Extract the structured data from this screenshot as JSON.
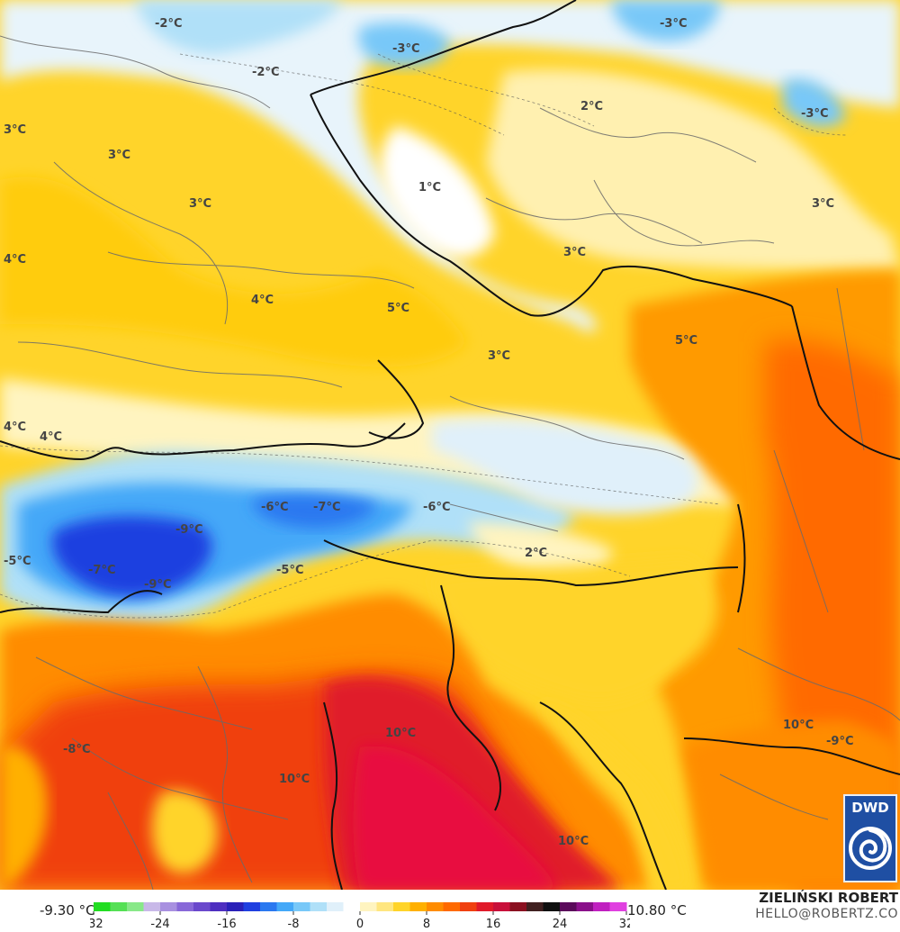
{
  "map": {
    "labels": [
      {
        "text": "-2°C"
      },
      {
        "text": "-2°C"
      },
      {
        "text": "-3°C"
      },
      {
        "text": "-3°C"
      },
      {
        "text": "-3°C"
      },
      {
        "text": "3°C"
      },
      {
        "text": "3°C"
      },
      {
        "text": "3°C"
      },
      {
        "text": "1°C"
      },
      {
        "text": "2°C"
      },
      {
        "text": "3°C"
      },
      {
        "text": "3°C"
      },
      {
        "text": "4°C"
      },
      {
        "text": "4°C"
      },
      {
        "text": "5°C"
      },
      {
        "text": "5°C"
      },
      {
        "text": "3°C"
      },
      {
        "text": "4°C"
      },
      {
        "text": "4°C"
      },
      {
        "text": "-6°C"
      },
      {
        "text": "-7°C"
      },
      {
        "text": "-6°C"
      },
      {
        "text": "-9°C"
      },
      {
        "text": "-5°C"
      },
      {
        "text": "-7°C"
      },
      {
        "text": "-9°C"
      },
      {
        "text": "-5°C"
      },
      {
        "text": "2°C"
      },
      {
        "text": "10°C"
      },
      {
        "text": "10°C"
      },
      {
        "text": "-8°C"
      },
      {
        "text": "10°C"
      },
      {
        "text": "-9°C"
      },
      {
        "text": "10°C"
      }
    ]
  },
  "legend": {
    "min_value": "-9.30 °C",
    "max_value": "10.80 °C",
    "ticks": [
      "-32",
      "-24",
      "-16",
      "-8",
      "0",
      "8",
      "16",
      "24",
      "32"
    ],
    "colors": [
      "#22dd22",
      "#55e055",
      "#88e888",
      "#c8b8e8",
      "#a890e0",
      "#8868d8",
      "#6a48cc",
      "#4e2ec0",
      "#2a20b8",
      "#1f3fe0",
      "#2a78f0",
      "#44a8f8",
      "#78c8f8",
      "#b0e0f8",
      "#e0f0fa",
      "#ffffff",
      "#fff4c0",
      "#ffe680",
      "#ffd42a",
      "#ffb000",
      "#ff8c00",
      "#ff6a00",
      "#f04010",
      "#e01a2a",
      "#c8103a",
      "#8a1020",
      "#402020",
      "#101010",
      "#5a0a5a",
      "#8a108a",
      "#c020c0",
      "#e040e0"
    ]
  },
  "author": {
    "name": "ZIELIŃSKI ROBERT",
    "email": "HELLO@ROBERTZ.CO"
  },
  "logo": {
    "text": "DWD"
  }
}
